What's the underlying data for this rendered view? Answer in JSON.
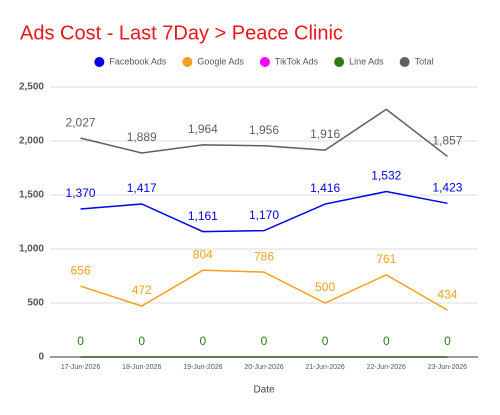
{
  "chart_data": {
    "type": "line",
    "title": "Ads Cost - Last 7Day > Peace Clinic",
    "x_label": "Date",
    "categories": [
      "17-Jun-2026",
      "18-Jun-2026",
      "19-Jun-2026",
      "20-Jun-2026",
      "21-Jun-2026",
      "22-Jun-2026",
      "23-Jun-2026"
    ],
    "series": [
      {
        "name": "Facebook Ads",
        "color": "#0000ee",
        "values": [
          1370,
          1417,
          1161,
          1170,
          1416,
          1532,
          1423
        ],
        "value_labels": [
          "1,370",
          "1,417",
          "1,161",
          "1,170",
          "1,416",
          "1,532",
          "1,423"
        ]
      },
      {
        "name": "Google Ads",
        "color": "#f4a01e",
        "values": [
          656,
          472,
          804,
          786,
          500,
          761,
          434
        ],
        "data_labels": true
      },
      {
        "name": "TikTok Ads",
        "color": "#ff00ff",
        "values": [
          0,
          0,
          0,
          0,
          0,
          0,
          0
        ],
        "data_labels": false
      },
      {
        "name": "Line Ads",
        "color": "#2e7d12",
        "values": [
          0,
          0,
          0,
          0,
          0,
          0,
          0
        ],
        "data_labels": true
      },
      {
        "name": "Total",
        "color": "#5f5f5f",
        "values": [
          2027,
          1889,
          1964,
          1956,
          1916,
          2293,
          1857
        ],
        "value_labels": [
          "2,027",
          "1,889",
          "1,964",
          "1,956",
          "1,916",
          null,
          "1,857"
        ]
      }
    ],
    "ylim": [
      0,
      2500
    ],
    "yticks": [
      0,
      500,
      {
        "value": 1000,
        "label": "1,000"
      },
      {
        "value": 1500,
        "label": "1,500"
      },
      {
        "value": 2000,
        "label": "2,000"
      },
      {
        "value": 2500,
        "label": "2,500"
      }
    ],
    "grid": true,
    "legend": "top"
  }
}
